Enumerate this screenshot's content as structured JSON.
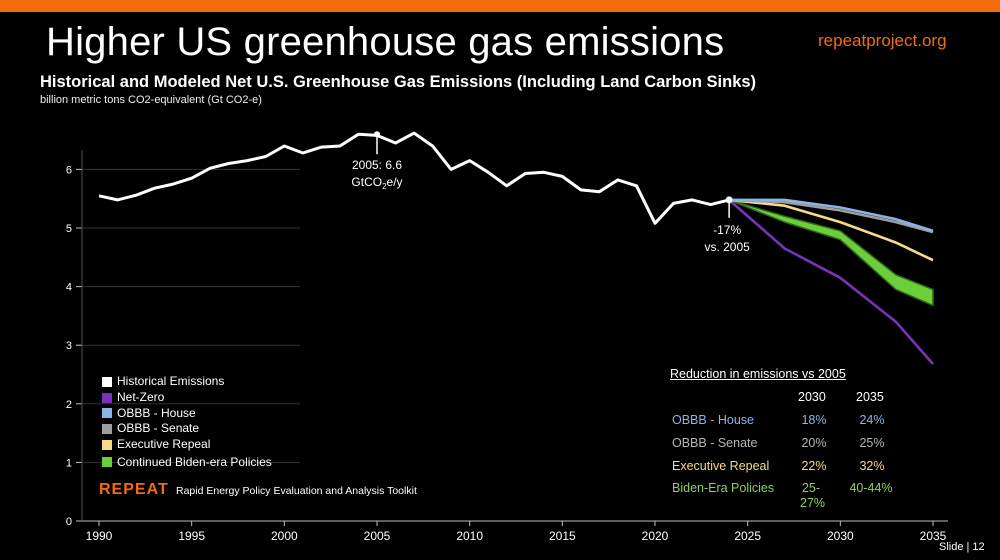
{
  "slide": {
    "title": "Higher US greenhouse gas emissions",
    "site": "repeatproject.org",
    "slide_number": "Slide | 12",
    "accent_color": "#f26b0f"
  },
  "brand": {
    "logo": "REPEAT",
    "tagline": "Rapid Energy Policy Evaluation and Analysis Toolkit"
  },
  "chart_data": {
    "type": "line",
    "title": "Historical and Modeled Net U.S. Greenhouse Gas Emissions (Including Land Carbon Sinks)",
    "subtitle": "billion metric tons CO2-equivalent (Gt CO2-e)",
    "xlim": [
      1990,
      2035
    ],
    "ylim": [
      0,
      6.5
    ],
    "x_ticks": [
      1990,
      1995,
      2000,
      2005,
      2010,
      2015,
      2020,
      2025,
      2030,
      2035
    ],
    "y_ticks": [
      0,
      1,
      2,
      3,
      4,
      5,
      6
    ],
    "series": [
      {
        "name": "Historical Emissions",
        "color": "#ffffff",
        "x": [
          1990,
          1991,
          1992,
          1993,
          1994,
          1995,
          1996,
          1997,
          1998,
          1999,
          2000,
          2001,
          2002,
          2003,
          2004,
          2005,
          2006,
          2007,
          2008,
          2009,
          2010,
          2011,
          2012,
          2013,
          2014,
          2015,
          2016,
          2017,
          2018,
          2019,
          2020,
          2021,
          2022,
          2023,
          2024
        ],
        "values": [
          5.55,
          5.48,
          5.56,
          5.68,
          5.75,
          5.85,
          6.02,
          6.1,
          6.15,
          6.22,
          6.4,
          6.28,
          6.38,
          6.4,
          6.6,
          6.58,
          6.45,
          6.62,
          6.4,
          6.0,
          6.15,
          5.95,
          5.72,
          5.93,
          5.95,
          5.88,
          5.65,
          5.62,
          5.82,
          5.72,
          5.08,
          5.42,
          5.48,
          5.4,
          5.48
        ]
      },
      {
        "name": "Net-Zero",
        "color": "#7a33b8",
        "x": [
          2024,
          2027,
          2030,
          2033,
          2035
        ],
        "values": [
          5.48,
          4.65,
          4.15,
          3.4,
          2.68
        ]
      },
      {
        "name": "OBBB - House",
        "color": "#8ab4e6",
        "x": [
          2024,
          2027,
          2030,
          2033,
          2035
        ],
        "values": [
          5.48,
          5.48,
          5.35,
          5.15,
          4.95
        ]
      },
      {
        "name": "OBBB - Senate",
        "color": "#9e9e9e",
        "x": [
          2024,
          2027,
          2030,
          2033,
          2035
        ],
        "values": [
          5.48,
          5.44,
          5.3,
          5.1,
          4.93
        ]
      },
      {
        "name": "Executive Repeal",
        "color": "#f7d98b",
        "x": [
          2024,
          2027,
          2030,
          2033,
          2035
        ],
        "values": [
          5.48,
          5.38,
          5.1,
          4.75,
          4.45
        ]
      },
      {
        "name": "Continued Biden-era Policies",
        "color": "#6ccf3a",
        "x": [
          2024,
          2027,
          2030,
          2033,
          2035
        ],
        "upper": [
          5.48,
          5.2,
          4.95,
          4.2,
          3.95
        ],
        "lower": [
          5.48,
          5.1,
          4.8,
          3.95,
          3.68
        ]
      }
    ],
    "annotations": [
      {
        "text_line1": "2005: 6.6",
        "text_line2_pre": "GtCO",
        "text_line2_sub": "2",
        "text_line2_post": "e/y",
        "x": 2005,
        "y": 6.6
      },
      {
        "text_line1": "-17%",
        "text_line2": "vs. 2005",
        "x": 2024,
        "y": 5.48
      }
    ]
  },
  "reduction_table": {
    "title": "Reduction in emissions vs 2005",
    "years": [
      "2030",
      "2035"
    ],
    "rows": [
      {
        "label": "OBBB - House",
        "v2030": "18%",
        "v2035": "24%",
        "color": "#8ab4e6"
      },
      {
        "label": "OBBB - Senate",
        "v2030": "20%",
        "v2035": "25%",
        "color": "#b4b4b4"
      },
      {
        "label": "Executive Repeal",
        "v2030": "22%",
        "v2035": "32%",
        "color": "#f7d98b"
      },
      {
        "label": "Biden-Era Policies",
        "v2030": "25-27%",
        "v2035": "40-44%",
        "color": "#8fd068"
      }
    ]
  }
}
